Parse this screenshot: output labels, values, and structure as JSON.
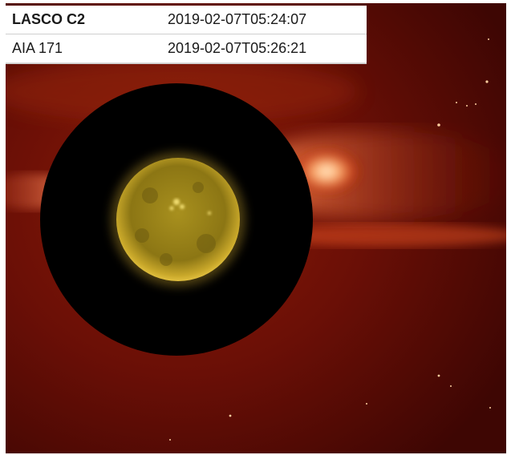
{
  "layers": [
    {
      "name": "LASCO C2",
      "timestamp": "2019-02-07T05:24:07",
      "active": true
    },
    {
      "name": "AIA 171",
      "timestamp": "2019-02-07T05:26:21",
      "active": false
    }
  ],
  "colors": {
    "corona_background": "#5a0a04",
    "corona_bright": "#ffe0b0",
    "occulter": "#000000",
    "sun_disk": "#b89a1c",
    "table_border": "#cfcfcf"
  }
}
